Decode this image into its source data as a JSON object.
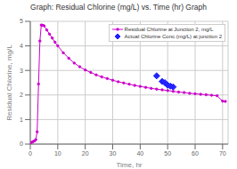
{
  "chart_data": {
    "type": "line",
    "title": "Graph: Residual Chlorine (mg/L) vs. Time (hr) Graph",
    "xlabel": "Time, hr",
    "ylabel": "Residual Chlorine, mg/L",
    "xlim": [
      0,
      72
    ],
    "ylim": [
      0,
      5
    ],
    "xticks": [
      0,
      10,
      20,
      30,
      40,
      50,
      60,
      70
    ],
    "yticks": [
      0,
      1,
      2,
      3,
      4,
      5
    ],
    "grid": true,
    "legend": "upper right",
    "series": [
      {
        "name": "Residual Chlorine at Junction 2, mg/L",
        "type": "line",
        "color": "#cc00cc",
        "marker": "circle",
        "x": [
          0,
          0.5,
          1,
          1.5,
          2,
          2.5,
          3,
          3.5,
          4,
          4.5,
          5,
          6,
          7,
          8,
          9,
          10,
          12,
          14,
          16,
          18,
          20,
          22,
          24,
          26,
          28,
          30,
          32,
          34,
          36,
          38,
          40,
          42,
          44,
          46,
          48,
          50,
          52,
          54,
          56,
          58,
          60,
          62,
          64,
          66,
          68,
          70,
          71
        ],
        "values": [
          0.05,
          0.07,
          0.1,
          0.13,
          0.18,
          0.5,
          2.45,
          4.2,
          4.85,
          4.84,
          4.82,
          4.65,
          4.48,
          4.32,
          4.15,
          4.0,
          3.72,
          3.5,
          3.3,
          3.15,
          3.02,
          2.92,
          2.82,
          2.74,
          2.67,
          2.6,
          2.54,
          2.49,
          2.44,
          2.39,
          2.35,
          2.31,
          2.27,
          2.24,
          2.21,
          2.18,
          2.15,
          2.12,
          2.1,
          2.07,
          2.05,
          2.03,
          2.01,
          1.99,
          1.97,
          1.75,
          1.74
        ]
      },
      {
        "name": "Actual Chlorine Conc.(mg/L) at junction 2",
        "type": "scatter",
        "color": "#2222ff",
        "marker": "diamond",
        "x": [
          46,
          48,
          49,
          50,
          51,
          52
        ],
        "values": [
          2.78,
          2.55,
          2.5,
          2.4,
          2.36,
          2.33
        ]
      }
    ]
  }
}
